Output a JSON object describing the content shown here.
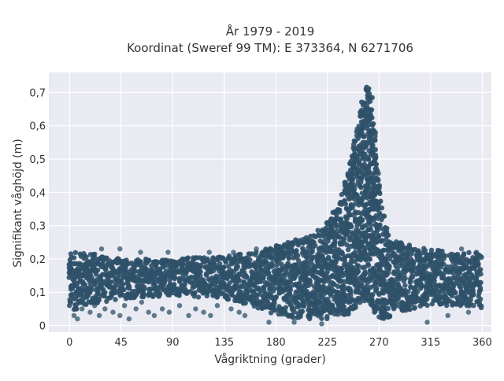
{
  "chart_data": {
    "type": "scatter",
    "title_line1": "År 1979 - 2019",
    "title_line2": "Koordinat (Sweref 99 TM): E 373364, N 6271706",
    "xlabel": "Vågriktning (grader)",
    "ylabel": "Signifikant våghöjd (m)",
    "xlim": [
      -18,
      368
    ],
    "ylim": [
      -0.02,
      0.76
    ],
    "x_ticks": [
      0,
      45,
      90,
      135,
      180,
      225,
      270,
      315,
      360
    ],
    "x_tick_labels": [
      "0",
      "45",
      "90",
      "135",
      "180",
      "225",
      "270",
      "315",
      "360"
    ],
    "y_ticks": [
      0,
      0.1,
      0.2,
      0.3,
      0.4,
      0.5,
      0.6,
      0.7
    ],
    "y_tick_labels": [
      "0",
      "0,1",
      "0,2",
      "0,3",
      "0,4",
      "0,5",
      "0,6",
      "0,7"
    ],
    "grid": true,
    "marker_color": "#2f5169",
    "plot_background": "#e9eaf2",
    "envelope": {
      "x": [
        0,
        15,
        45,
        90,
        135,
        160,
        180,
        200,
        215,
        225,
        235,
        242,
        248,
        252,
        256,
        258,
        260,
        262,
        264,
        266,
        268,
        272,
        276,
        282,
        290,
        300,
        315,
        340,
        360
      ],
      "upper": [
        0.22,
        0.22,
        0.2,
        0.2,
        0.21,
        0.22,
        0.24,
        0.26,
        0.28,
        0.31,
        0.37,
        0.45,
        0.55,
        0.63,
        0.69,
        0.72,
        0.73,
        0.72,
        0.69,
        0.62,
        0.5,
        0.38,
        0.3,
        0.26,
        0.25,
        0.24,
        0.23,
        0.22,
        0.22
      ],
      "lower": [
        0.04,
        0.06,
        0.08,
        0.09,
        0.08,
        0.06,
        0.03,
        0.02,
        0.02,
        0.02,
        0.03,
        0.03,
        0.05,
        0.06,
        0.07,
        0.07,
        0.07,
        0.06,
        0.05,
        0.04,
        0.03,
        0.02,
        0.02,
        0.03,
        0.04,
        0.05,
        0.06,
        0.06,
        0.05
      ]
    },
    "outliers": [
      [
        4,
        0.03
      ],
      [
        7,
        0.02
      ],
      [
        11,
        0.05
      ],
      [
        18,
        0.04
      ],
      [
        22,
        0.06
      ],
      [
        26,
        0.03
      ],
      [
        31,
        0.05
      ],
      [
        38,
        0.04
      ],
      [
        44,
        0.03
      ],
      [
        48,
        0.06
      ],
      [
        52,
        0.02
      ],
      [
        58,
        0.05
      ],
      [
        63,
        0.07
      ],
      [
        69,
        0.04
      ],
      [
        74,
        0.03
      ],
      [
        81,
        0.05
      ],
      [
        87,
        0.04
      ],
      [
        96,
        0.06
      ],
      [
        104,
        0.03
      ],
      [
        110,
        0.05
      ],
      [
        117,
        0.04
      ],
      [
        123,
        0.03
      ],
      [
        129,
        0.06
      ],
      [
        141,
        0.05
      ],
      [
        148,
        0.04
      ],
      [
        153,
        0.03
      ],
      [
        44,
        0.23
      ],
      [
        28,
        0.23
      ],
      [
        62,
        0.22
      ],
      [
        86,
        0.22
      ],
      [
        122,
        0.22
      ],
      [
        143,
        0.22
      ],
      [
        163,
        0.23
      ],
      [
        342,
        0.23
      ],
      [
        355,
        0.22
      ],
      [
        174,
        0.01
      ],
      [
        196,
        0.01
      ],
      [
        220,
        0.005
      ],
      [
        312,
        0.01
      ],
      [
        330,
        0.03
      ],
      [
        348,
        0.04
      ]
    ]
  }
}
